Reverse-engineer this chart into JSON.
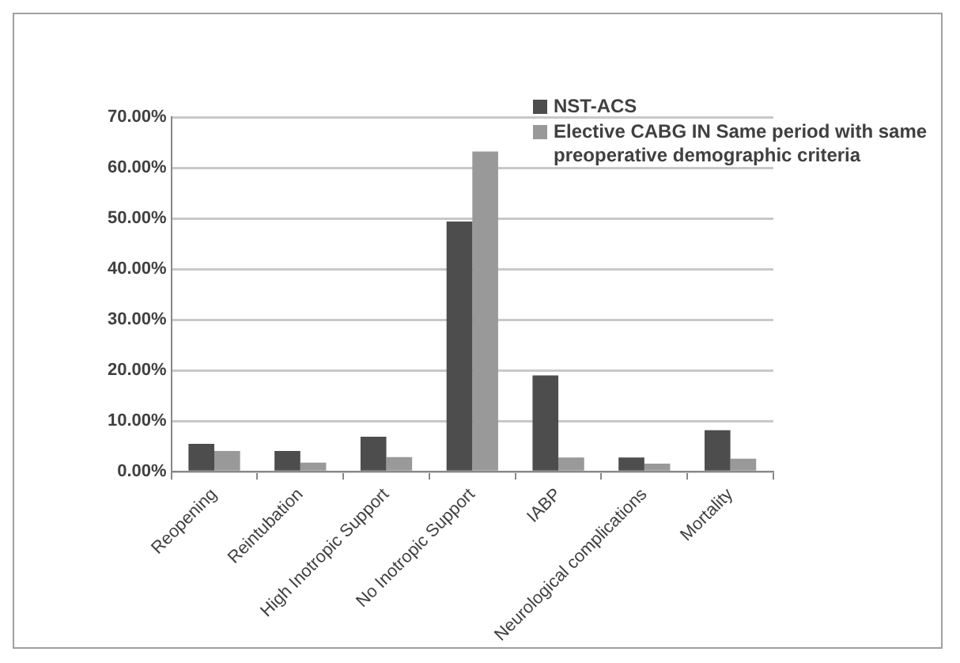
{
  "chart_data": {
    "type": "bar",
    "categories": [
      "Reopening",
      "Reintubation",
      "High Inotropic Support",
      "No Inotropic Support",
      "IABP",
      "Neurological complications",
      "Mortality"
    ],
    "series": [
      {
        "name": "NST-ACS",
        "color": "#4d4d4d",
        "values": [
          5.5,
          4.1,
          6.9,
          49.4,
          19.0,
          2.8,
          8.2
        ]
      },
      {
        "name": "Elective  CABG IN Same period with  same  preoperative demographic criteria",
        "color": "#999999",
        "values": [
          4.1,
          1.8,
          2.9,
          63.2,
          2.8,
          1.6,
          2.6
        ]
      }
    ],
    "ylim": [
      0,
      70
    ],
    "yticks": [
      {
        "value": 0,
        "label": "0.00%"
      },
      {
        "value": 10,
        "label": "10.00%"
      },
      {
        "value": 20,
        "label": "20.00%"
      },
      {
        "value": 30,
        "label": "30.00%"
      },
      {
        "value": 40,
        "label": "40.00%"
      },
      {
        "value": 50,
        "label": "50.00%"
      },
      {
        "value": 60,
        "label": "60.00%"
      },
      {
        "value": 70,
        "label": "70.00%"
      }
    ],
    "grid": "y",
    "legend": "top right"
  }
}
